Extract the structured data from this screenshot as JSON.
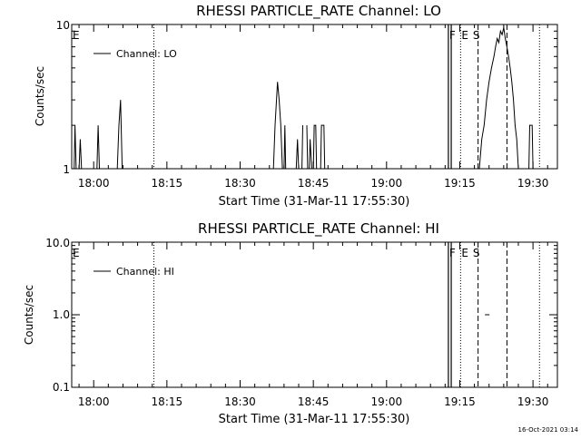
{
  "footer": {
    "timestamp": "16-Oct-2021 03:14"
  },
  "chart_data": [
    {
      "type": "line",
      "title": "RHESSI PARTICLE_RATE Channel: LO",
      "xlabel": "Start Time (31-Mar-11 17:55:30)",
      "ylabel": "Counts/sec",
      "yscale": "log",
      "xlim": [
        "17:55:30",
        "19:35:00"
      ],
      "ylim": [
        1,
        10
      ],
      "x_ticks": [
        "18:00",
        "18:15",
        "18:30",
        "18:45",
        "19:00",
        "19:15",
        "19:30"
      ],
      "y_ticks": [
        "1",
        "10"
      ],
      "legend": {
        "entries": [
          "Channel: LO"
        ],
        "placement": "top-left"
      },
      "flag_labels": [
        {
          "text": "E",
          "x": "17:55:30"
        },
        {
          "text": "F",
          "x": "19:12:40"
        },
        {
          "text": "E",
          "x": "19:15:10"
        },
        {
          "text": "S",
          "x": "19:17:30"
        }
      ],
      "markers": {
        "solid": [
          "19:12:40",
          "19:13:15"
        ],
        "dotted": [
          "18:12:20",
          "19:15:10",
          "19:31:20"
        ],
        "dashed": [
          "19:18:45",
          "19:24:40"
        ]
      },
      "series": [
        {
          "name": "Channel: LO",
          "points": [
            [
              "17:56:00",
              1
            ],
            [
              "17:56:10",
              2
            ],
            [
              "17:56:25",
              1
            ],
            [
              "17:57:00",
              1
            ],
            [
              "17:57:15",
              1.6
            ],
            [
              "17:57:30",
              1
            ],
            [
              "18:00:40",
              1
            ],
            [
              "18:00:55",
              2
            ],
            [
              "18:01:10",
              1
            ],
            [
              "18:04:50",
              1
            ],
            [
              "18:05:10",
              2
            ],
            [
              "18:05:30",
              3
            ],
            [
              "18:05:50",
              1
            ],
            [
              "18:36:50",
              1
            ],
            [
              "18:37:10",
              2
            ],
            [
              "18:37:40",
              4
            ],
            [
              "18:38:00",
              3
            ],
            [
              "18:38:20",
              2
            ],
            [
              "18:38:40",
              1
            ],
            [
              "18:39:00",
              1
            ],
            [
              "18:39:10",
              2
            ],
            [
              "18:39:20",
              1
            ],
            [
              "18:41:30",
              1
            ],
            [
              "18:41:45",
              1.6
            ],
            [
              "18:42:00",
              1
            ],
            [
              "18:42:40",
              1
            ],
            [
              "18:42:50",
              2
            ],
            [
              "18:43:40",
              2
            ],
            [
              "18:43:50",
              1
            ],
            [
              "18:44:10",
              1
            ],
            [
              "18:44:20",
              1.6
            ],
            [
              "18:44:40",
              1
            ],
            [
              "18:45:00",
              1
            ],
            [
              "18:45:10",
              2
            ],
            [
              "18:45:30",
              2
            ],
            [
              "18:45:40",
              1
            ],
            [
              "18:46:30",
              1
            ],
            [
              "18:46:40",
              2
            ],
            [
              "18:47:10",
              2
            ],
            [
              "18:47:20",
              1
            ],
            [
              "19:19:00",
              1
            ],
            [
              "19:19:30",
              1.6
            ],
            [
              "19:20:00",
              2
            ],
            [
              "19:20:30",
              3
            ],
            [
              "19:21:00",
              4
            ],
            [
              "19:21:30",
              5
            ],
            [
              "19:22:00",
              6
            ],
            [
              "19:22:20",
              7
            ],
            [
              "19:22:40",
              8
            ],
            [
              "19:23:00",
              7.5
            ],
            [
              "19:23:20",
              9
            ],
            [
              "19:23:40",
              8.5
            ],
            [
              "19:24:00",
              9.5
            ],
            [
              "19:24:20",
              8
            ],
            [
              "19:24:40",
              7
            ],
            [
              "19:25:00",
              6
            ],
            [
              "19:25:20",
              5
            ],
            [
              "19:25:40",
              4
            ],
            [
              "19:26:00",
              3
            ],
            [
              "19:26:20",
              2
            ],
            [
              "19:26:40",
              1.6
            ],
            [
              "19:27:00",
              1
            ],
            [
              "19:29:10",
              1
            ],
            [
              "19:29:20",
              2
            ],
            [
              "19:29:50",
              2
            ],
            [
              "19:30:00",
              1
            ]
          ]
        }
      ]
    },
    {
      "type": "line",
      "title": "RHESSI PARTICLE_RATE Channel: HI",
      "xlabel": "Start Time (31-Mar-11 17:55:30)",
      "ylabel": "Counts/sec",
      "yscale": "log",
      "xlim": [
        "17:55:30",
        "19:35:00"
      ],
      "ylim": [
        0.1,
        10
      ],
      "x_ticks": [
        "18:00",
        "18:15",
        "18:30",
        "18:45",
        "19:00",
        "19:15",
        "19:30"
      ],
      "y_ticks": [
        "10.0",
        "1.0",
        "0.1"
      ],
      "legend": {
        "entries": [
          "Channel: HI"
        ],
        "placement": "top-left"
      },
      "flag_labels": [
        {
          "text": "E",
          "x": "17:55:30"
        },
        {
          "text": "F",
          "x": "19:12:40"
        },
        {
          "text": "E",
          "x": "19:15:10"
        },
        {
          "text": "S",
          "x": "19:17:30"
        }
      ],
      "markers": {
        "solid": [
          "19:12:40",
          "19:13:15"
        ],
        "dotted": [
          "18:12:20",
          "19:15:10",
          "19:31:20"
        ],
        "dashed": [
          "19:18:45",
          "19:24:40"
        ]
      },
      "series": [
        {
          "name": "Channel: HI",
          "points": [
            [
              "19:20:10",
              1
            ],
            [
              "19:20:25",
              1
            ],
            [
              "19:20:50",
              1
            ],
            [
              "19:21:05",
              1
            ]
          ]
        }
      ]
    }
  ]
}
